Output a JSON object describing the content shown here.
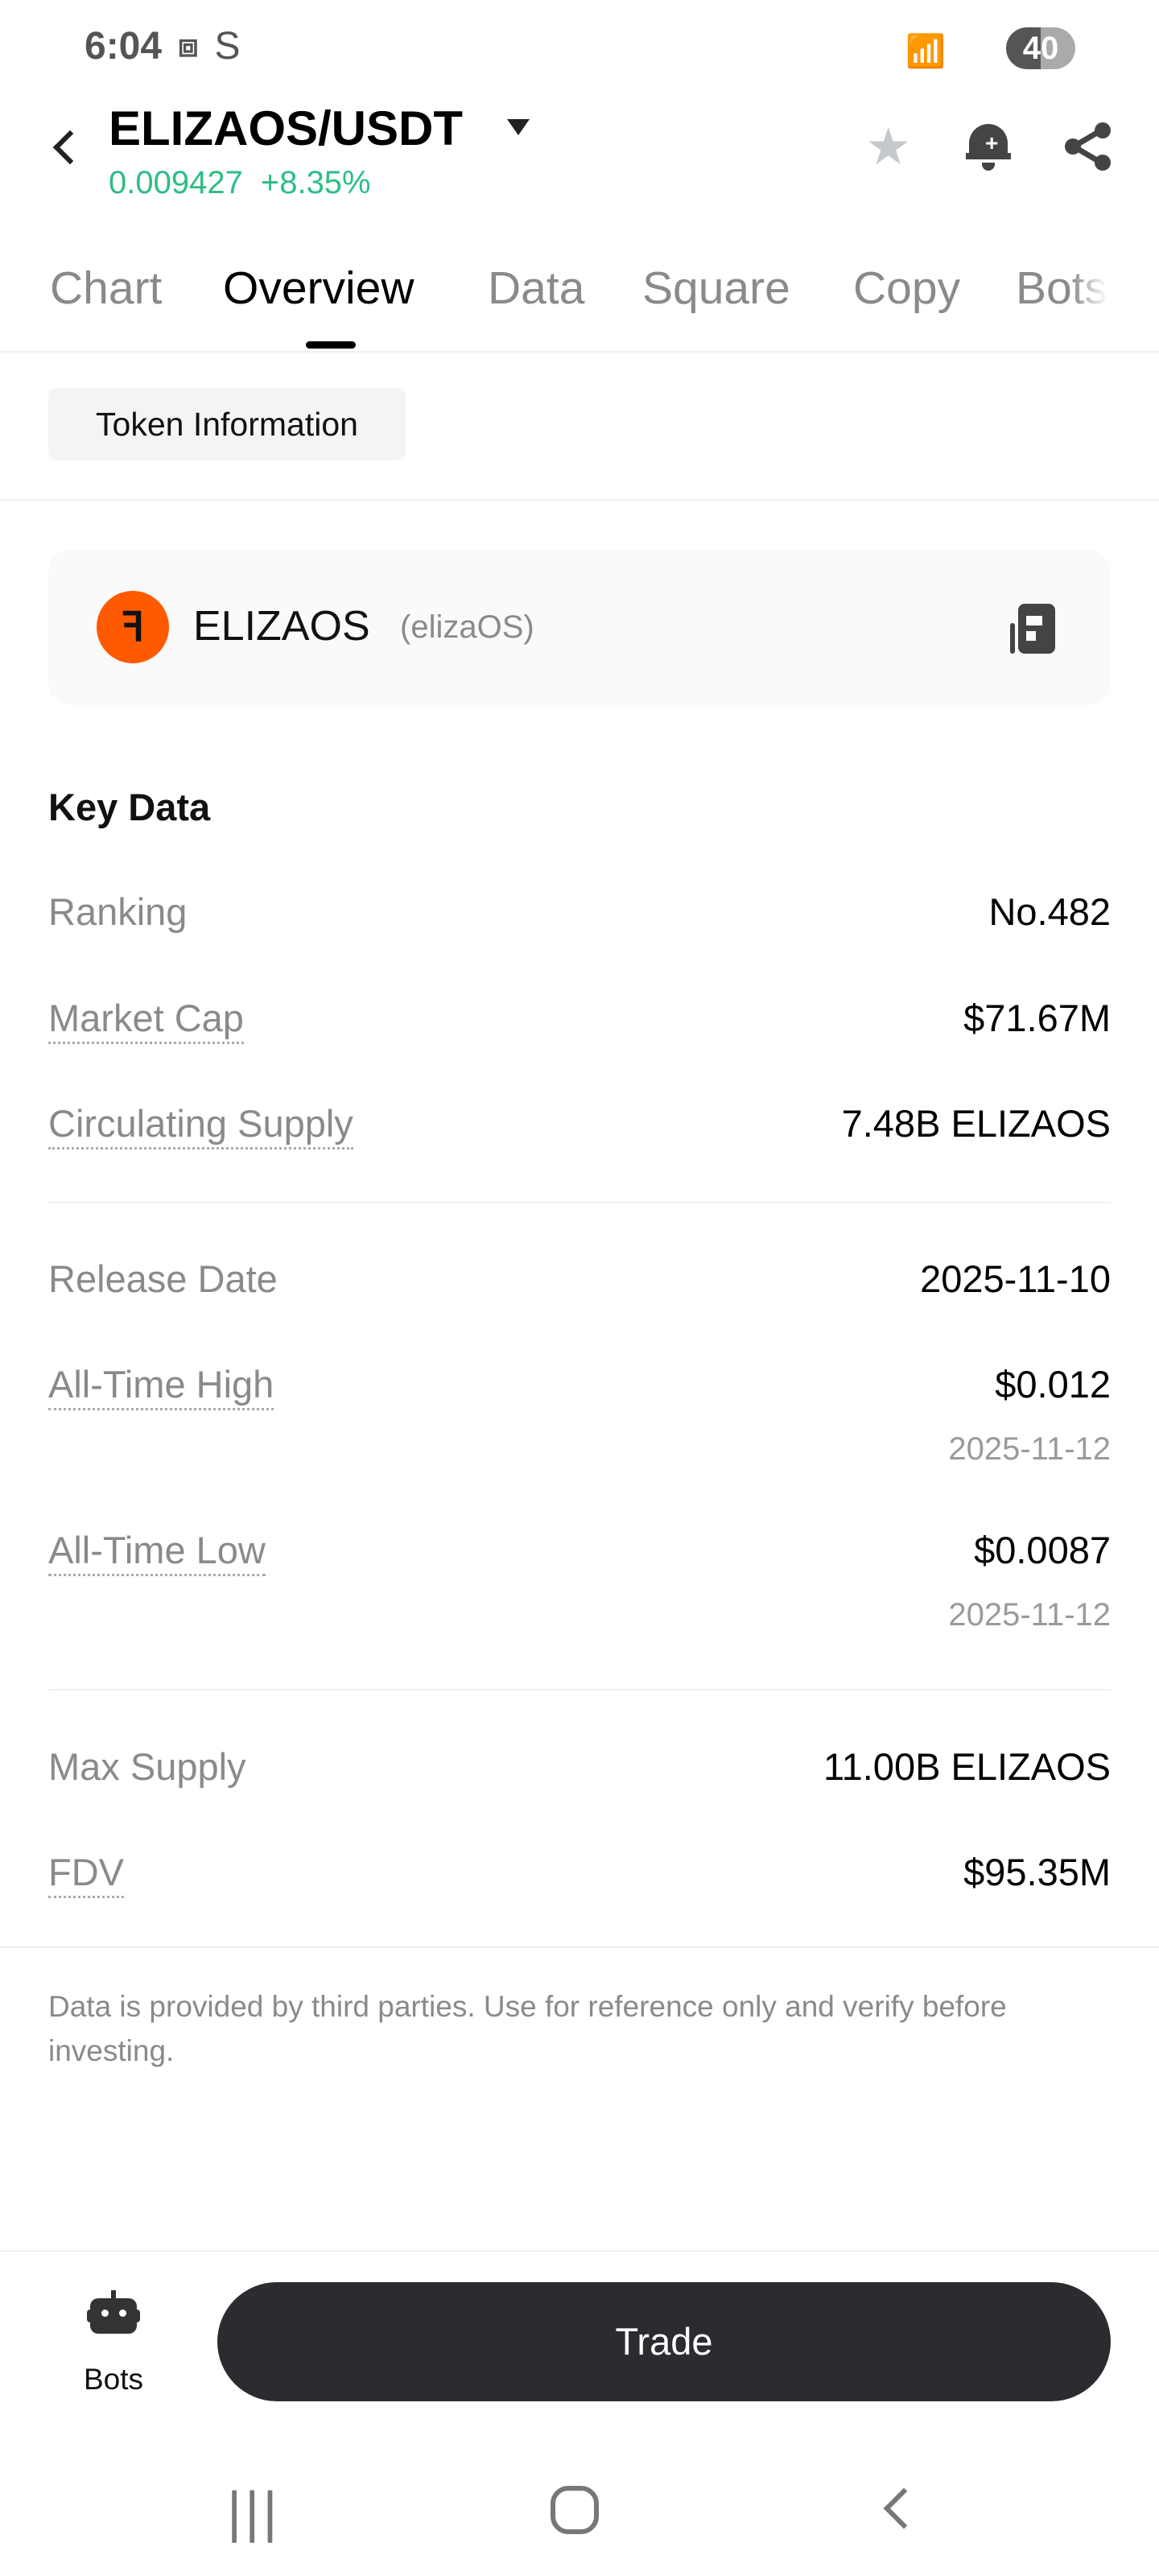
{
  "status_bar": {
    "time": "6:04",
    "s_icon": "S",
    "battery": "40"
  },
  "header": {
    "pair": "ELIZAOS/USDT",
    "price": "0.009427",
    "change": "+8.35%",
    "price_color": "#2ebd85"
  },
  "tabs": [
    {
      "label": "Chart"
    },
    {
      "label": "Overview",
      "active": true
    },
    {
      "label": "Data"
    },
    {
      "label": "Square"
    },
    {
      "label": "Copy"
    },
    {
      "label": "Bots"
    }
  ],
  "subtab": "Token Information",
  "token": {
    "symbol": "ELIZAOS",
    "name": "(elizaOS)",
    "logo_color": "#ff5a00"
  },
  "key_data": {
    "title": "Key Data",
    "rows": [
      {
        "label": "Ranking",
        "value": "No.482"
      },
      {
        "label": "Market Cap",
        "value": "$71.67M"
      },
      {
        "label": "Circulating Supply",
        "value": "7.48B ELIZAOS"
      },
      {
        "label": "Release Date",
        "value": "2025-11-10"
      },
      {
        "label": "All-Time High",
        "value": "$0.012",
        "date": "2025-11-12"
      },
      {
        "label": "All-Time Low",
        "value": "$0.0087",
        "date": "2025-11-12"
      },
      {
        "label": "Max Supply",
        "value": "11.00B ELIZAOS"
      },
      {
        "label": "FDV",
        "value": "$95.35M"
      }
    ]
  },
  "disclaimer": "Data is provided by third parties. Use for reference only and verify before investing.",
  "bottom": {
    "bots_label": "Bots",
    "trade_label": "Trade"
  },
  "nav": {
    "recents": "|||",
    "home": "○",
    "back": "<"
  }
}
